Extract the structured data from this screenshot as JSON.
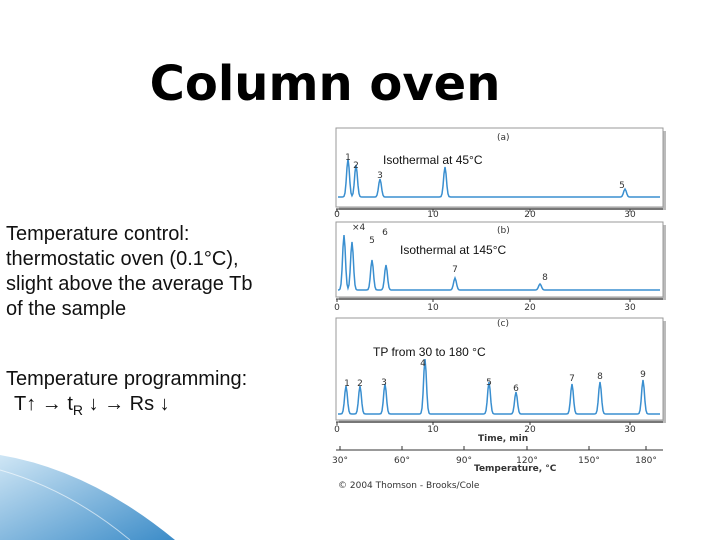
{
  "title": "Column oven",
  "bullets": [
    {
      "lines": [
        "Temperature control:",
        "thermostatic oven (0.1°C),",
        "slight above the average Tb",
        "of the sample"
      ]
    },
    {
      "lines": [
        "Temperature programming:"
      ],
      "formula": {
        "before": "T↑ → t",
        "sub": "R",
        "after": " ↓ → Rs ↓"
      }
    }
  ],
  "figure": {
    "panels": [
      {
        "tag": "(a)",
        "caption": "Isothermal at 45°C",
        "peaks": [
          "1",
          "2",
          "3",
          "5"
        ],
        "ticks": [
          "0",
          "10",
          "20",
          "30"
        ]
      },
      {
        "tag": "(b)",
        "caption": "Isothermal at 145°C",
        "note": "×4",
        "peaks": [
          "5",
          "6",
          "7",
          "8"
        ],
        "ticks": [
          "0",
          "10",
          "20",
          "30"
        ]
      },
      {
        "tag": "(c)",
        "caption": "TP from 30 to 180 °C",
        "peaks": [
          "1",
          "2",
          "3",
          "4",
          "5",
          "6",
          "7",
          "8",
          "9"
        ],
        "ticks": [
          "0",
          "10",
          "20",
          "30"
        ]
      }
    ],
    "time_label": "Time, min",
    "temperature_ticks": [
      "30°",
      "60°",
      "90°",
      "120°",
      "150°",
      "180°"
    ],
    "temperature_label": "Temperature, °C",
    "credit": "© 2004 Thomson - Brooks/Cole"
  }
}
